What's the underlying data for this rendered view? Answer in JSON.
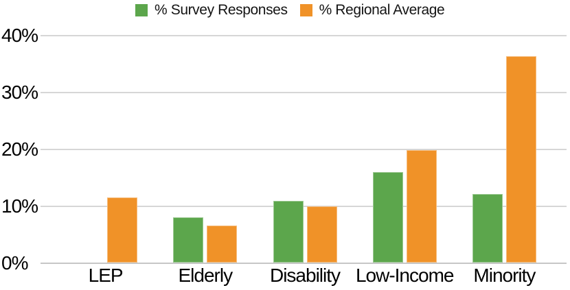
{
  "chart_data": {
    "type": "bar",
    "title": "",
    "categories": [
      "LEP",
      "Elderly",
      "Disability",
      "Low-Income",
      "Minority"
    ],
    "series": [
      {
        "name": "% Survey Responses",
        "color": "#5CA64C",
        "values": [
          0,
          8,
          10.9,
          15.9,
          12
        ]
      },
      {
        "name": "% Regional Average",
        "color": "#F09228",
        "values": [
          11.4,
          6.5,
          9.9,
          19.8,
          36.3
        ]
      }
    ],
    "xlabel": "",
    "ylabel": "",
    "ylim": [
      0,
      40
    ],
    "yticks": [
      {
        "value": 0,
        "label": "0%"
      },
      {
        "value": 10,
        "label": "10%"
      },
      {
        "value": 20,
        "label": "20%"
      },
      {
        "value": 30,
        "label": "30%"
      },
      {
        "value": 40,
        "label": "40%"
      }
    ],
    "grid": true,
    "legend_position": "top-center",
    "colors": {
      "gridline": "#d6d6d6",
      "axis_line": "#c6c6c6",
      "text": "#000000",
      "background": "#ffffff"
    }
  }
}
